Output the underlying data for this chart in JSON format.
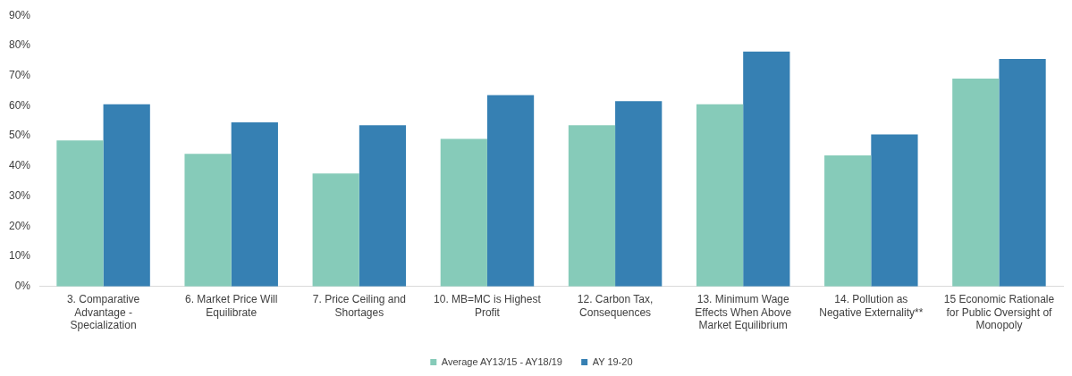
{
  "chart_data": {
    "type": "bar",
    "categories": [
      "3. Comparative Advantage - Specialization",
      "6. Market Price Will Equilibrate",
      "7. Price Ceiling and Shortages",
      "10. MB=MC is Highest Profit",
      "12. Carbon Tax, Consequences",
      "13. Minimum Wage Effects When Above Market Equilibrium",
      "14. Pollution as Negative Externality**",
      "15 Economic Rationale for Public Oversight of Monopoly"
    ],
    "series": [
      {
        "name": "Average AY13/15 - AY18/19",
        "color": "#86cbb9",
        "values": [
          48.5,
          44,
          37.5,
          49,
          53.5,
          60.5,
          43.5,
          69
        ]
      },
      {
        "name": "AY 19-20",
        "color": "#3680b3",
        "values": [
          60.5,
          54.5,
          53.5,
          63.5,
          61.5,
          78,
          50.5,
          75.5
        ]
      }
    ],
    "ylim": [
      0,
      90
    ],
    "yticks": [
      {
        "value": 0,
        "label": "0%"
      },
      {
        "value": 10,
        "label": "10%"
      },
      {
        "value": 20,
        "label": "20%"
      },
      {
        "value": 30,
        "label": "30%"
      },
      {
        "value": 40,
        "label": "40%"
      },
      {
        "value": 50,
        "label": "50%"
      },
      {
        "value": 60,
        "label": "60%"
      },
      {
        "value": 70,
        "label": "70%"
      },
      {
        "value": 80,
        "label": "80%"
      },
      {
        "value": 90,
        "label": "90%"
      }
    ],
    "grid": false,
    "legend": "bottom"
  }
}
